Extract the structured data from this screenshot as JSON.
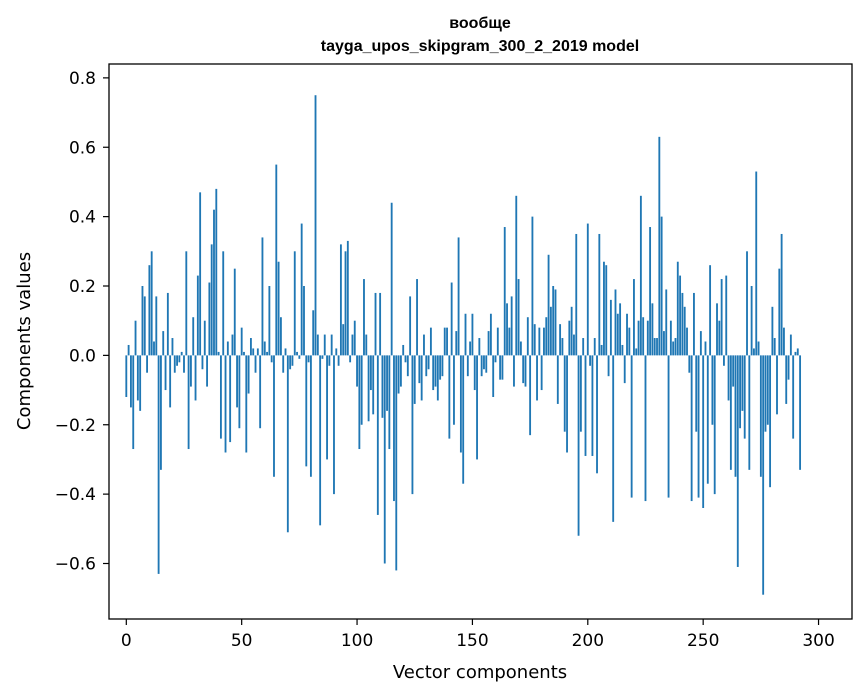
{
  "chart_data": {
    "type": "bar",
    "title": "вообще",
    "subtitle": "tayga_upos_skipgram_300_2_2019 model",
    "xlabel": "Vector components",
    "ylabel": "Components values",
    "xlim": [
      -7.5,
      314.5
    ],
    "ylim": [
      -0.76,
      0.84
    ],
    "xticks": [
      0,
      50,
      100,
      150,
      200,
      250,
      300
    ],
    "xtick_labels": [
      "0",
      "50",
      "100",
      "150",
      "200",
      "250",
      "300"
    ],
    "yticks": [
      -0.6,
      -0.4,
      -0.2,
      0.0,
      0.2,
      0.4,
      0.6,
      0.8
    ],
    "ytick_labels": [
      "−0.6",
      "−0.4",
      "−0.2",
      "0.0",
      "0.2",
      "0.4",
      "0.6",
      "0.8"
    ],
    "bar_color": "#1f77b4",
    "grid": false,
    "values": [
      -0.12,
      0.03,
      -0.15,
      -0.27,
      0.1,
      -0.13,
      -0.16,
      0.2,
      0.17,
      -0.05,
      0.26,
      0.3,
      0.04,
      0.17,
      -0.63,
      -0.33,
      0.07,
      -0.1,
      0.18,
      -0.15,
      0.05,
      -0.05,
      -0.03,
      -0.02,
      0.01,
      -0.05,
      0.3,
      -0.27,
      -0.09,
      0.11,
      -0.13,
      0.23,
      0.47,
      -0.04,
      0.1,
      -0.09,
      0.21,
      0.32,
      0.42,
      0.48,
      0.01,
      -0.24,
      0.3,
      -0.28,
      0.04,
      -0.25,
      0.06,
      0.25,
      -0.15,
      -0.21,
      0.08,
      0.01,
      -0.28,
      -0.11,
      0.05,
      0.02,
      -0.05,
      0.02,
      -0.21,
      0.34,
      0.04,
      0.01,
      0.2,
      -0.02,
      -0.35,
      0.55,
      0.27,
      0.11,
      -0.05,
      0.02,
      -0.51,
      -0.04,
      -0.03,
      0.3,
      0.01,
      -0.01,
      0.38,
      0.2,
      -0.32,
      -0.02,
      -0.35,
      0.13,
      0.75,
      0.06,
      -0.49,
      -0.01,
      0.06,
      -0.3,
      -0.03,
      0.06,
      -0.4,
      0.02,
      -0.03,
      0.32,
      0.09,
      0.3,
      0.33,
      -0.02,
      0.06,
      0.1,
      -0.09,
      -0.27,
      -0.2,
      0.22,
      0.06,
      -0.19,
      -0.1,
      -0.17,
      0.18,
      -0.46,
      0.18,
      -0.18,
      -0.6,
      -0.16,
      -0.27,
      0.44,
      -0.42,
      -0.62,
      -0.11,
      -0.09,
      0.03,
      -0.02,
      -0.06,
      0.17,
      -0.4,
      -0.14,
      0.22,
      -0.08,
      -0.13,
      0.06,
      -0.06,
      -0.04,
      0.08,
      -0.1,
      -0.09,
      -0.13,
      -0.07,
      -0.06,
      0.08,
      0.08,
      -0.24,
      0.21,
      -0.2,
      0.07,
      0.34,
      -0.28,
      -0.37,
      0.12,
      -0.06,
      0.04,
      0.12,
      -0.1,
      -0.3,
      0.05,
      -0.06,
      -0.04,
      -0.05,
      0.07,
      0.12,
      -0.12,
      -0.02,
      0.08,
      -0.07,
      -0.07,
      0.37,
      0.15,
      0.08,
      0.17,
      -0.09,
      0.46,
      0.22,
      0.04,
      -0.08,
      -0.09,
      0.11,
      -0.23,
      0.4,
      0.09,
      -0.13,
      0.08,
      -0.1,
      0.08,
      0.11,
      0.29,
      0.14,
      0.2,
      0.19,
      -0.14,
      0.09,
      0.05,
      -0.22,
      -0.28,
      0.1,
      0.14,
      0.06,
      0.35,
      -0.52,
      -0.22,
      0.05,
      -0.29,
      0.38,
      -0.03,
      -0.29,
      0.05,
      -0.34,
      0.35,
      0.03,
      0.27,
      0.26,
      -0.06,
      0.16,
      -0.48,
      0.19,
      0.12,
      0.15,
      0.03,
      -0.08,
      0.12,
      0.08,
      -0.41,
      0.22,
      0.02,
      0.1,
      0.46,
      0.11,
      -0.42,
      0.1,
      0.37,
      0.15,
      0.05,
      0.05,
      0.63,
      0.4,
      0.07,
      0.19,
      -0.41,
      0.1,
      0.04,
      0.05,
      0.27,
      0.23,
      0.18,
      0.14,
      0.08,
      -0.05,
      -0.42,
      0.18,
      -0.22,
      -0.41,
      0.07,
      -0.44,
      0.04,
      -0.37,
      0.26,
      -0.2,
      -0.4,
      0.15,
      0.1,
      0.22,
      -0.03,
      0.23,
      -0.13,
      -0.33,
      -0.09,
      -0.35,
      -0.61,
      -0.21,
      -0.16,
      -0.24,
      0.3,
      -0.33,
      0.2,
      0.02,
      0.53,
      0.04,
      -0.35,
      -0.69,
      -0.22,
      -0.2,
      -0.38,
      0.14,
      0.05,
      -0.17,
      0.25,
      0.35,
      0.08,
      -0.14,
      -0.07,
      0.06,
      -0.24,
      0.01,
      0.02,
      -0.33
    ]
  }
}
